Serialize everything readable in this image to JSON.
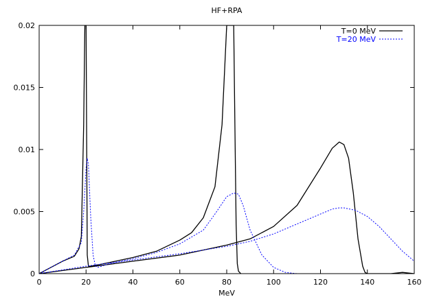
{
  "chart_data": {
    "type": "line",
    "title": "HF+RPA",
    "xlabel": "MeV",
    "ylabel": "",
    "xlim": [
      0,
      160
    ],
    "ylim": [
      0,
      0.02
    ],
    "xticks": [
      0,
      20,
      40,
      60,
      80,
      100,
      120,
      140,
      160
    ],
    "yticks": [
      0,
      0.005,
      0.01,
      0.015,
      0.02
    ],
    "xtick_labels": [
      "0",
      "20",
      "40",
      "60",
      "80",
      "100",
      "120",
      "140",
      "160"
    ],
    "ytick_labels": [
      "0",
      "0.005",
      "0.01",
      "0.015",
      "0.02"
    ],
    "grid": false,
    "legend_position": "top-right",
    "series": [
      {
        "name": "T=0 MeV",
        "color": "#000000",
        "style": "solid",
        "x": [
          0,
          5,
          10,
          15,
          17,
          18,
          19,
          19.5,
          20,
          20.5,
          21,
          22,
          25,
          30,
          40,
          50,
          60,
          65,
          70,
          75,
          78,
          80,
          81,
          82,
          82.5,
          83,
          83.5,
          84,
          84.5,
          85,
          86
        ],
        "y": [
          0,
          0.0005,
          0.001,
          0.0014,
          0.002,
          0.003,
          0.012,
          0.02,
          0.02,
          0.0015,
          0.0006,
          0.0006,
          0.0007,
          0.0009,
          0.0013,
          0.0018,
          0.0027,
          0.0033,
          0.0045,
          0.007,
          0.012,
          0.02,
          0.02,
          0.02,
          0.02,
          0.02,
          0.012,
          0.004,
          0.0008,
          0.0002,
          0
        ]
      },
      {
        "name": "",
        "color": "#000000",
        "style": "solid",
        "x": [
          0,
          20,
          40,
          60,
          80,
          90,
          100,
          110,
          120,
          125,
          128,
          130,
          132,
          134,
          136,
          138,
          139,
          140,
          145,
          150,
          155,
          160
        ],
        "y": [
          0,
          0.0005,
          0.001,
          0.0015,
          0.0023,
          0.0028,
          0.0038,
          0.0055,
          0.0085,
          0.0101,
          0.0106,
          0.0104,
          0.0093,
          0.0065,
          0.0028,
          0.0006,
          0.0001,
          0,
          0,
          0,
          0.0001,
          0
        ]
      },
      {
        "name": "T=20 MeV",
        "color": "#0000ff",
        "style": "dotted",
        "x": [
          0,
          5,
          10,
          15,
          18,
          19,
          20,
          20.5,
          21,
          22,
          23,
          24,
          25,
          30,
          40,
          50,
          60,
          70,
          75,
          80,
          83,
          85,
          87,
          90,
          95,
          100,
          105,
          110
        ],
        "y": [
          0,
          0.0005,
          0.001,
          0.0015,
          0.0025,
          0.005,
          0.0085,
          0.0093,
          0.0088,
          0.0045,
          0.0015,
          0.0006,
          0.0005,
          0.0008,
          0.0012,
          0.0017,
          0.0024,
          0.0035,
          0.0048,
          0.0062,
          0.0065,
          0.0064,
          0.0055,
          0.0035,
          0.0015,
          0.0005,
          0.0001,
          0
        ]
      },
      {
        "name": "",
        "color": "#0000ff",
        "style": "dotted",
        "x": [
          0,
          20,
          40,
          60,
          80,
          90,
          100,
          110,
          120,
          125,
          128,
          130,
          135,
          140,
          145,
          150,
          155,
          160
        ],
        "y": [
          0,
          0.0006,
          0.0011,
          0.0016,
          0.0022,
          0.0026,
          0.0032,
          0.004,
          0.0048,
          0.0052,
          0.0053,
          0.0053,
          0.0051,
          0.0046,
          0.0038,
          0.0028,
          0.0018,
          0.001
        ]
      }
    ]
  }
}
